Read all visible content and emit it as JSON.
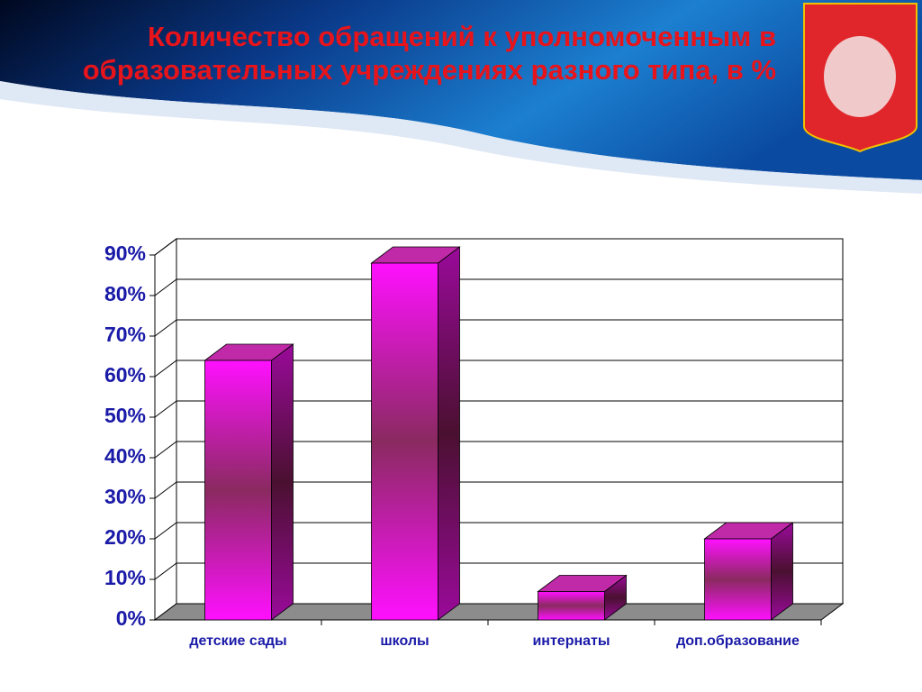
{
  "chart_data": {
    "type": "bar3d",
    "title": "Количество обращений к уполномоченным в образовательных учреждениях разного типа, в %",
    "categories": [
      "детские сады",
      "школы",
      "интернаты",
      "доп.образование"
    ],
    "values": [
      64,
      88,
      7,
      20
    ],
    "color": "#ff10ff",
    "ylim": [
      0,
      90
    ],
    "yticks": [
      {
        "value": 0,
        "label": "0%"
      },
      {
        "value": 10,
        "label": "10%"
      },
      {
        "value": 20,
        "label": "20%"
      },
      {
        "value": 30,
        "label": "30%"
      },
      {
        "value": 40,
        "label": "40%"
      },
      {
        "value": 50,
        "label": "50%"
      },
      {
        "value": 60,
        "label": "60%"
      },
      {
        "value": 70,
        "label": "70%"
      },
      {
        "value": 80,
        "label": "80%"
      },
      {
        "value": 90,
        "label": "90%"
      }
    ],
    "grid": true
  }
}
